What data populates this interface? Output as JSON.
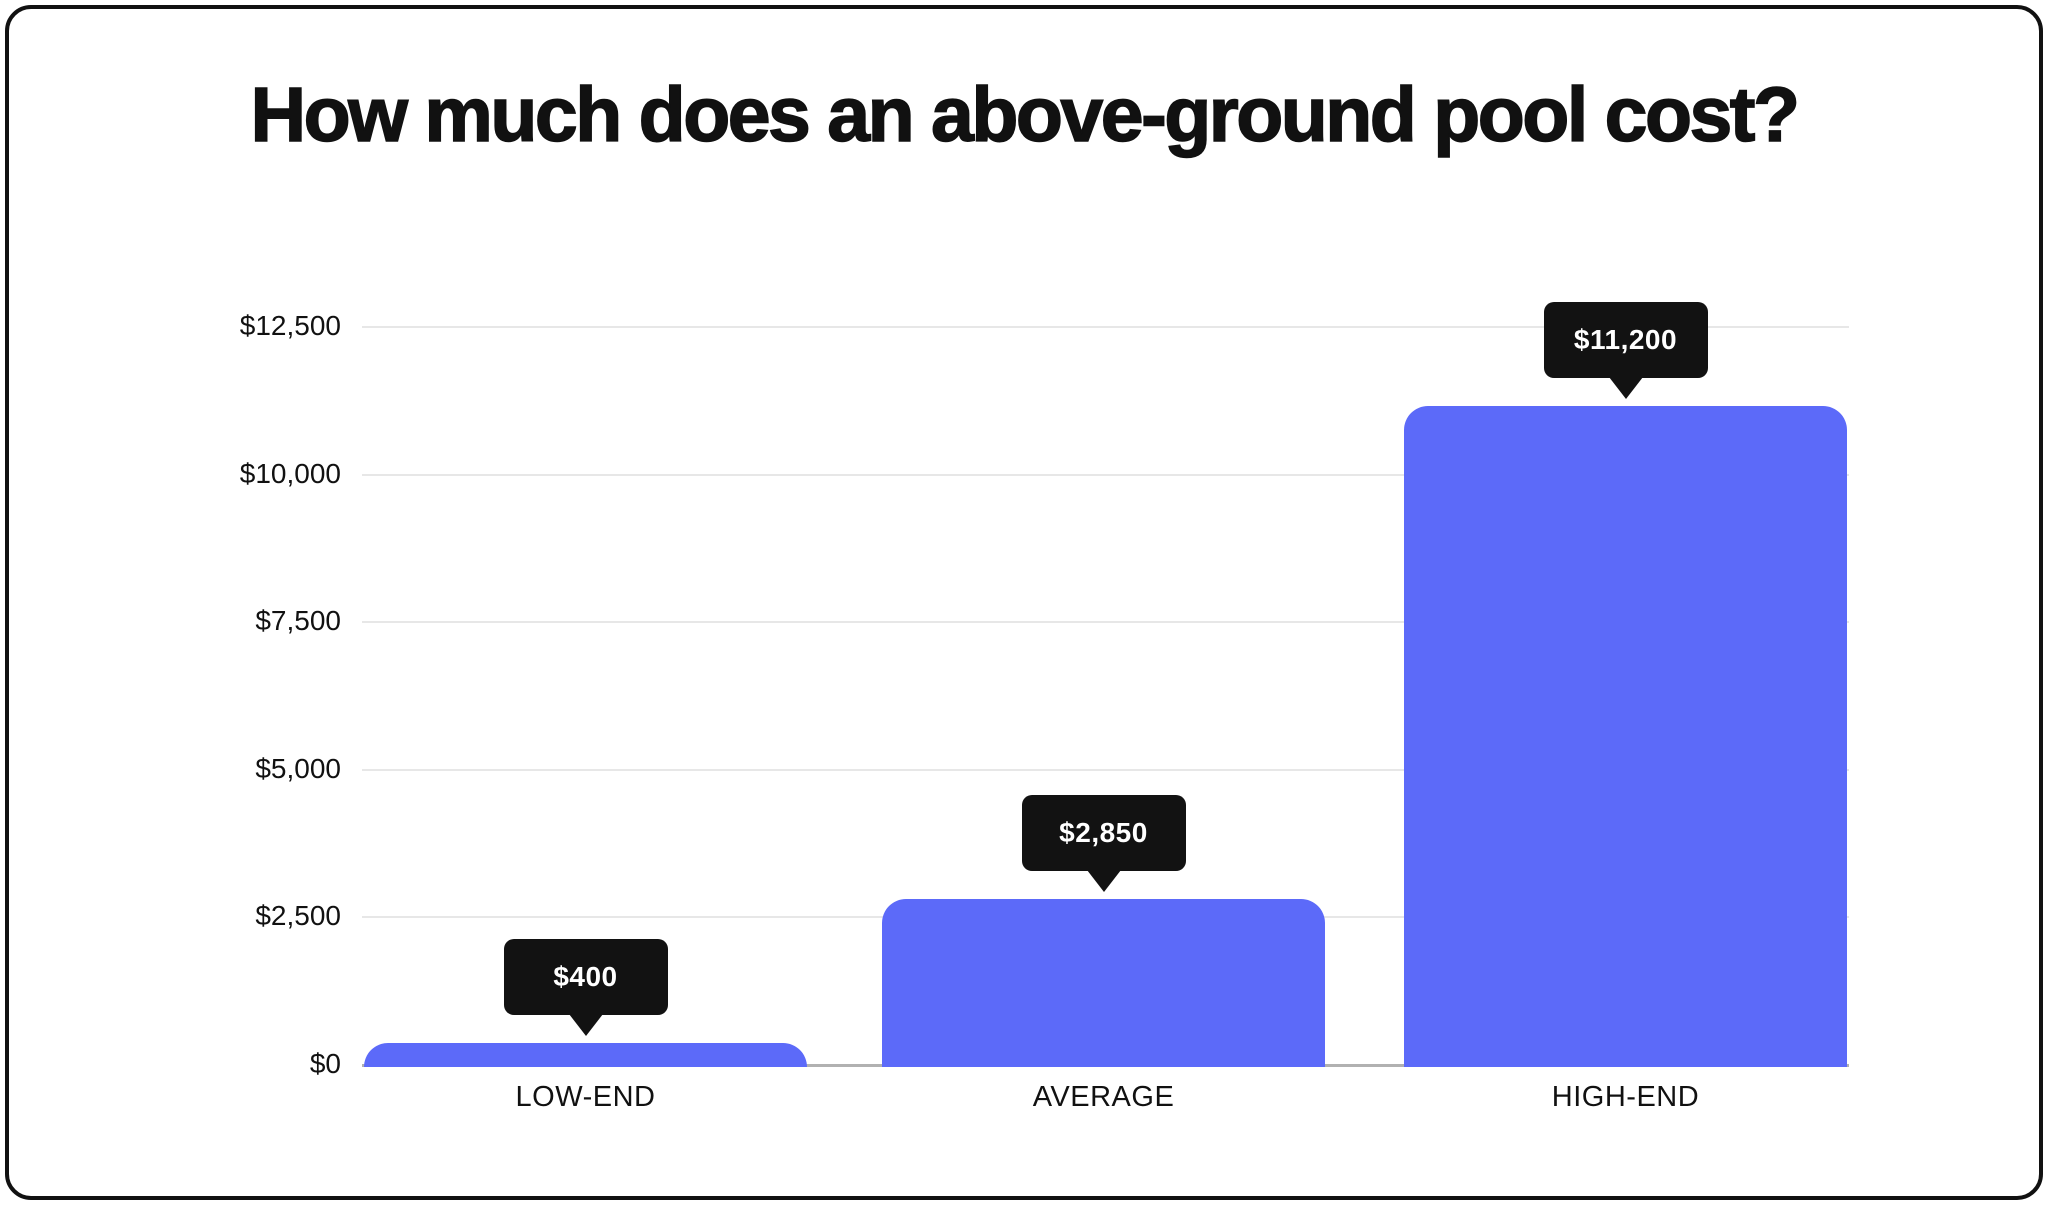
{
  "chart_data": {
    "type": "bar",
    "title": "How much does an above-ground pool cost?",
    "categories": [
      "LOW-END",
      "AVERAGE",
      "HIGH-END"
    ],
    "values": [
      400,
      2850,
      11200
    ],
    "value_labels": [
      "$400",
      "$2,850",
      "$11,200"
    ],
    "xlabel": "",
    "ylabel": "",
    "ylim": [
      0,
      12500
    ],
    "yticks": [
      12500,
      10000,
      7500,
      5000,
      2500,
      0
    ],
    "ytick_labels": [
      "$12,500",
      "$10,000",
      "$7,500",
      "$5,000",
      "$2,500",
      "$0"
    ],
    "grid": "horizontal-only",
    "legend": "none",
    "annotations": "black speech-bubble value tooltips above each bar",
    "colors": {
      "bar": "#5C6AF9",
      "tooltip_bg": "#121212",
      "tooltip_text": "#ffffff",
      "gridline": "#e7e7e7",
      "axis_line": "#b1b1b1",
      "text": "#111111",
      "card_border": "#111111",
      "background": "#ffffff"
    }
  }
}
